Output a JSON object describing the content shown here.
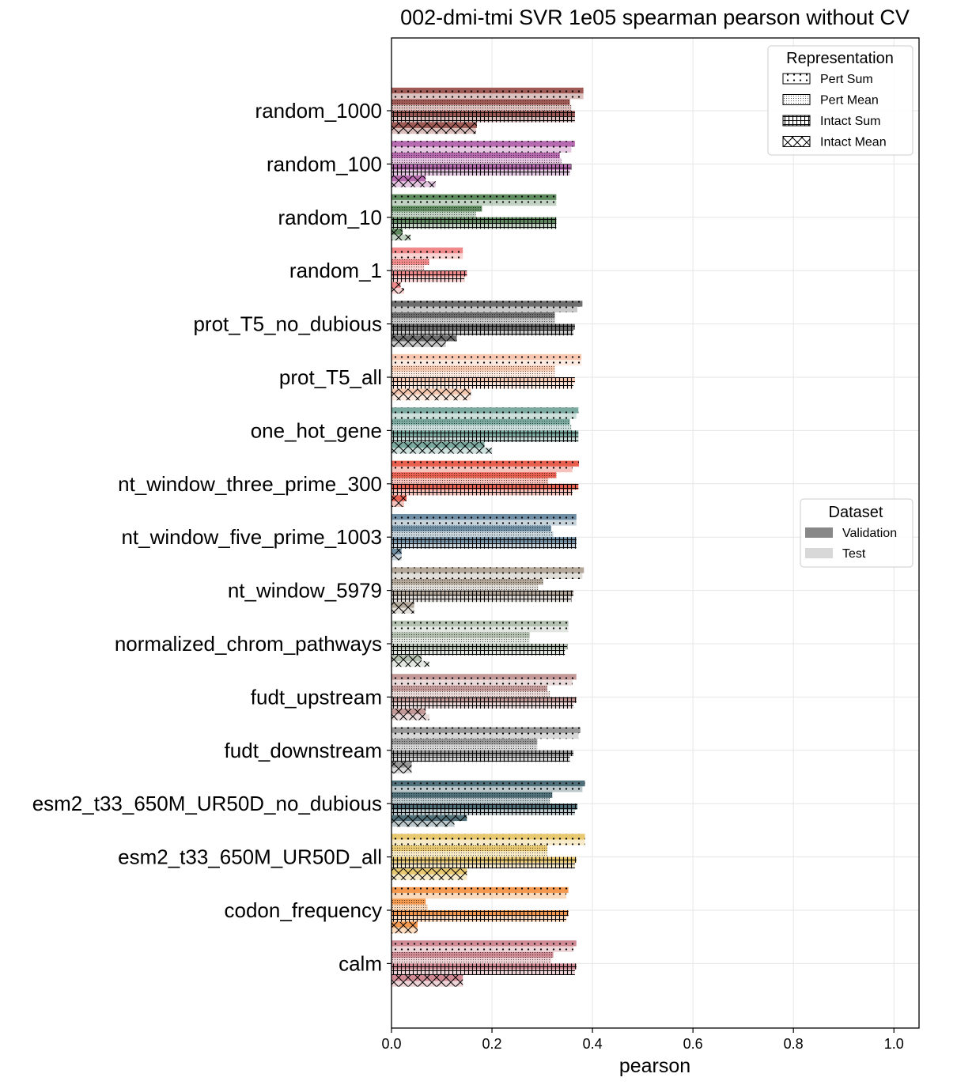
{
  "chart_data": {
    "type": "bar",
    "orientation": "horizontal",
    "title": "002-dmi-tmi SVR 1e05 spearman pearson without CV",
    "xlabel": "pearson",
    "ylabel": "",
    "xlim": [
      0.0,
      1.05
    ],
    "xticks": [
      0.0,
      0.2,
      0.4,
      0.6,
      0.8,
      1.0
    ],
    "xtick_labels": [
      "0.0",
      "0.2",
      "0.4",
      "0.6",
      "0.8",
      "1.0"
    ],
    "grid": true,
    "categories": [
      "random_1000",
      "random_100",
      "random_10",
      "random_1",
      "prot_T5_no_dubious",
      "prot_T5_all",
      "one_hot_gene",
      "nt_window_three_prime_300",
      "nt_window_five_prime_1003",
      "nt_window_5979",
      "normalized_chrom_pathways",
      "fudt_upstream",
      "fudt_downstream",
      "esm2_t33_650M_UR50D_no_dubious",
      "esm2_t33_650M_UR50D_all",
      "codon_frequency",
      "calm"
    ],
    "colors": [
      "#a05a55",
      "#b86ab0",
      "#5e8a5e",
      "#f08a8a",
      "#6e6e6e",
      "#f6c8b0",
      "#7aaaa0",
      "#e86050",
      "#6e8ea4",
      "#b4a89a",
      "#b4c0b0",
      "#c49a98",
      "#989898",
      "#4e6e78",
      "#e8c870",
      "#f49a50",
      "#d08a94"
    ],
    "representations": [
      {
        "name": "Pert Sum",
        "hatch": "dots"
      },
      {
        "name": "Pert Mean",
        "hatch": "fine"
      },
      {
        "name": "Intact Sum",
        "hatch": "grid"
      },
      {
        "name": "Intact Mean",
        "hatch": "cross"
      }
    ],
    "datasets": [
      {
        "name": "Validation",
        "color": "#888888"
      },
      {
        "name": "Test",
        "color": "#d8d8d8"
      }
    ],
    "series": [
      {
        "name": "Pert Sum",
        "dataset": "Validation",
        "values": [
          0.382,
          0.365,
          0.328,
          0.142,
          0.38,
          0.378,
          0.372,
          0.373,
          0.368,
          0.383,
          0.352,
          0.368,
          0.376,
          0.385,
          0.385,
          0.352,
          0.368
        ]
      },
      {
        "name": "Pert Sum",
        "dataset": "Test",
        "values": [
          0.382,
          0.358,
          0.328,
          0.142,
          0.37,
          0.378,
          0.368,
          0.36,
          0.368,
          0.38,
          0.352,
          0.36,
          0.372,
          0.38,
          0.385,
          0.348,
          0.362
        ]
      },
      {
        "name": "Pert Mean",
        "dataset": "Validation",
        "values": [
          0.355,
          0.335,
          0.18,
          0.075,
          0.325,
          0.325,
          0.355,
          0.328,
          0.318,
          0.302,
          0.275,
          0.31,
          0.29,
          0.32,
          0.31,
          0.068,
          0.322
        ]
      },
      {
        "name": "Pert Mean",
        "dataset": "Test",
        "values": [
          0.358,
          0.338,
          0.168,
          0.065,
          0.325,
          0.325,
          0.358,
          0.312,
          0.322,
          0.292,
          0.275,
          0.315,
          0.29,
          0.315,
          0.31,
          0.072,
          0.318
        ]
      },
      {
        "name": "Intact Sum",
        "dataset": "Validation",
        "values": [
          0.365,
          0.358,
          0.328,
          0.15,
          0.365,
          0.365,
          0.372,
          0.372,
          0.368,
          0.362,
          0.35,
          0.368,
          0.362,
          0.37,
          0.368,
          0.352,
          0.368
        ]
      },
      {
        "name": "Intact Sum",
        "dataset": "Test",
        "values": [
          0.365,
          0.355,
          0.328,
          0.145,
          0.362,
          0.362,
          0.372,
          0.36,
          0.368,
          0.358,
          0.345,
          0.362,
          0.355,
          0.365,
          0.365,
          0.348,
          0.365
        ]
      },
      {
        "name": "Intact Mean",
        "dataset": "Validation",
        "values": [
          0.17,
          0.068,
          0.022,
          0.018,
          0.13,
          0.158,
          0.185,
          0.03,
          0.02,
          0.045,
          0.06,
          0.068,
          0.04,
          0.15,
          0.15,
          0.052,
          0.142
        ]
      },
      {
        "name": "Intact Mean",
        "dataset": "Test",
        "values": [
          0.168,
          0.088,
          0.038,
          0.025,
          0.108,
          0.158,
          0.2,
          0.025,
          0.02,
          0.045,
          0.075,
          0.075,
          0.04,
          0.125,
          0.15,
          0.052,
          0.142
        ]
      }
    ],
    "legends": [
      {
        "title": "Representation",
        "placement": "top-right",
        "entries": [
          "Pert Sum",
          "Pert Mean",
          "Intact Sum",
          "Intact Mean"
        ]
      },
      {
        "title": "Dataset",
        "placement": "center-right",
        "entries": [
          "Validation",
          "Test"
        ]
      }
    ]
  }
}
